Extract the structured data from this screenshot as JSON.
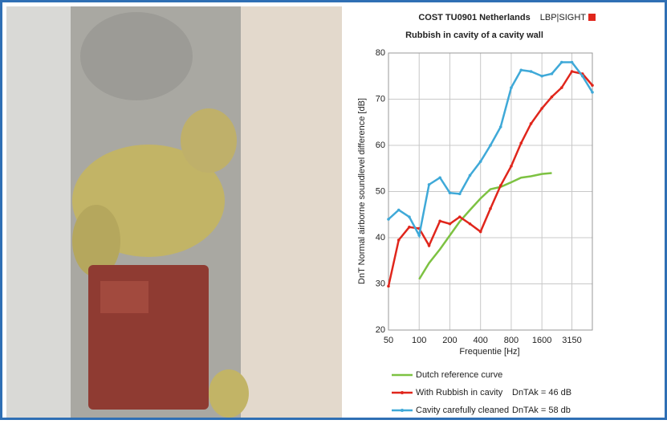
{
  "chart_data": {
    "type": "line",
    "title": "COST TU0901 Netherlands",
    "subtitle": "Rubbish in cavity of a cavity wall",
    "logo": "LBP|SIGHT",
    "xlabel": "Frequentie [Hz]",
    "ylabel": "DnT Normal airborne soundlevel difference [dB]",
    "x": [
      50,
      63,
      80,
      100,
      125,
      160,
      200,
      250,
      315,
      400,
      500,
      630,
      800,
      1000,
      1250,
      1600,
      2000,
      2500,
      3150,
      4000,
      5000
    ],
    "xlim": [
      50,
      5000
    ],
    "xscale": "log",
    "xticks": [
      50,
      100,
      200,
      400,
      800,
      1600,
      3150
    ],
    "ylim": [
      20,
      80
    ],
    "yticks": [
      20,
      30,
      40,
      50,
      60,
      70,
      80
    ],
    "grid": true,
    "series": [
      {
        "name": "Dutch reference curve",
        "color": "#7dc242",
        "markers": false,
        "values": [
          null,
          null,
          null,
          31,
          34.5,
          37.5,
          40.5,
          43.5,
          46,
          48.5,
          50.5,
          51,
          52,
          53,
          53.3,
          53.8,
          54,
          null,
          null,
          null,
          null
        ]
      },
      {
        "name": "With Rubbish in cavity",
        "color": "#e0261c",
        "markers": true,
        "values": [
          29.5,
          39.5,
          42.3,
          42,
          38.3,
          43.6,
          43,
          44.5,
          43,
          41.3,
          46.3,
          51.3,
          55.5,
          60.5,
          64.7,
          68,
          70.5,
          72.5,
          76,
          75.5,
          73
        ]
      },
      {
        "name": "Cavity carefully cleaned",
        "color": "#3fa9d8",
        "markers": true,
        "values": [
          44,
          46,
          44.5,
          40.5,
          51.5,
          53,
          49.7,
          49.5,
          53.5,
          56.5,
          60,
          64,
          72.5,
          76.3,
          76,
          75,
          75.5,
          78,
          78,
          75,
          71.5
        ]
      }
    ],
    "annotations": [
      "DnTAk = 46 dB",
      "DnTAk = 58 db"
    ]
  }
}
